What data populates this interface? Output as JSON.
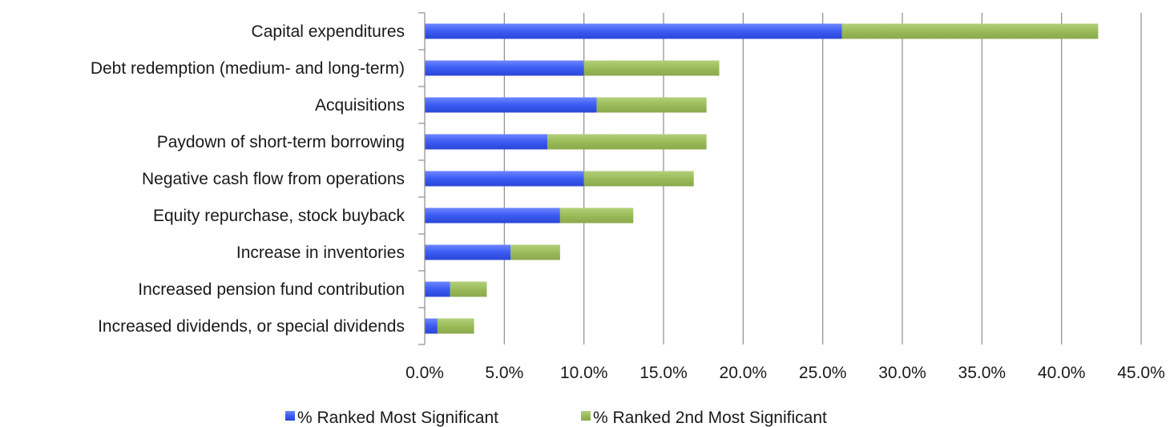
{
  "chart_data": {
    "type": "bar",
    "orientation": "horizontal",
    "stacked": true,
    "categories": [
      "Capital expenditures",
      "Debt redemption (medium- and long-term)",
      "Acquisitions",
      "Paydown of short-term borrowing",
      "Negative cash flow from operations",
      "Equity repurchase, stock buyback",
      "Increase in inventories",
      "Increased pension fund contribution",
      "Increased dividends, or special dividends"
    ],
    "series": [
      {
        "name": "% Ranked Most Significant",
        "color": "#3f5ff5",
        "values": [
          26.2,
          10.0,
          10.8,
          7.7,
          10.0,
          8.5,
          5.4,
          1.6,
          0.8
        ]
      },
      {
        "name": "% Ranked 2nd Most Significant",
        "color": "#9bbb59",
        "values": [
          16.1,
          8.5,
          6.9,
          10.0,
          6.9,
          4.6,
          3.1,
          2.3,
          2.3
        ]
      }
    ],
    "xlim": [
      0,
      45
    ],
    "xticks": [
      "0.0%",
      "5.0%",
      "10.0%",
      "15.0%",
      "20.0%",
      "25.0%",
      "30.0%",
      "35.0%",
      "40.0%",
      "45.0%"
    ],
    "grid": true,
    "legend_position": "bottom"
  }
}
